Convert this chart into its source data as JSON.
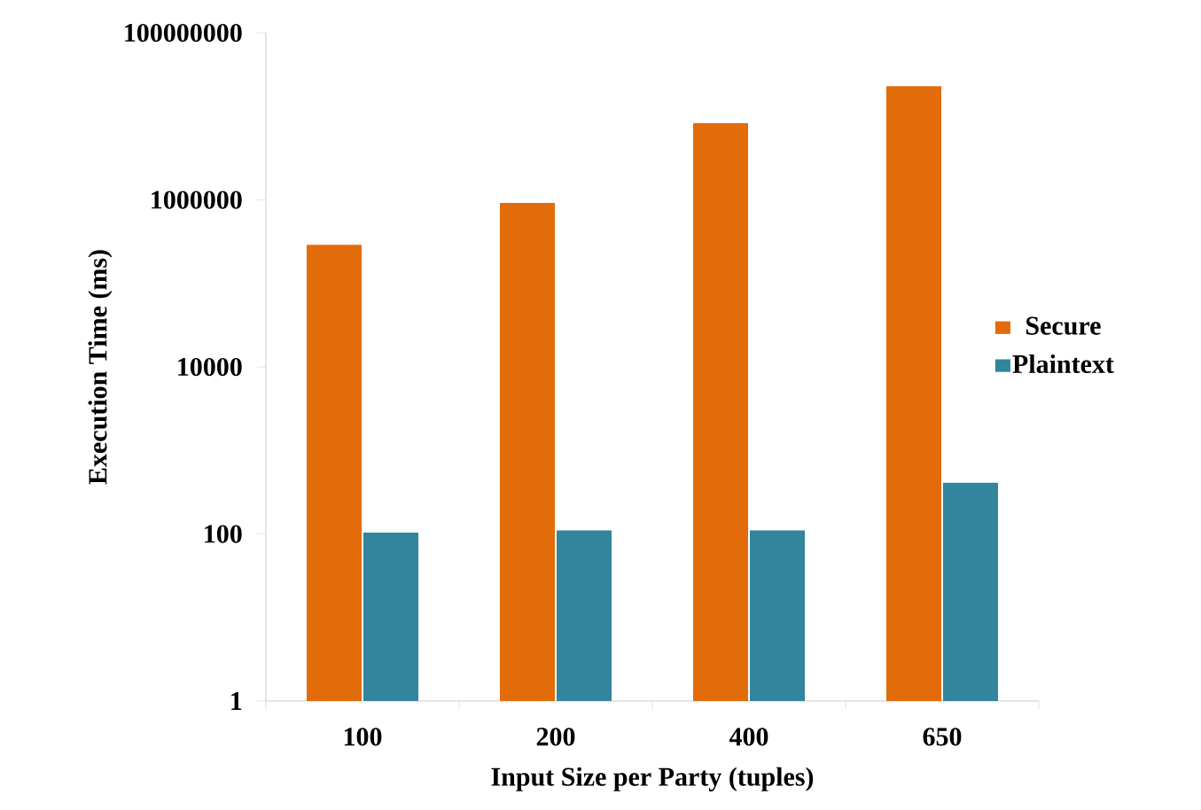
{
  "chart_data": {
    "type": "bar",
    "xlabel": "Input Size per Party (tuples)",
    "ylabel": "Execution Time (ms)",
    "categories": [
      "100",
      "200",
      "400",
      "650"
    ],
    "series": [
      {
        "name": "Secure",
        "color": "#e36c0a",
        "values": [
          290000,
          920000,
          8300000,
          23000000
        ]
      },
      {
        "name": "Plaintext",
        "color": "#31859c",
        "values": [
          104,
          110,
          110,
          410
        ]
      }
    ],
    "log": "y",
    "ylim": [
      1,
      100000000
    ],
    "yticks": [
      1,
      100,
      10000,
      1000000,
      100000000
    ],
    "grid": false,
    "legend": "right"
  }
}
